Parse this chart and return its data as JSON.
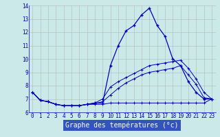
{
  "hours": [
    0,
    1,
    2,
    3,
    4,
    5,
    6,
    7,
    8,
    9,
    10,
    11,
    12,
    13,
    14,
    15,
    16,
    17,
    18,
    19,
    20,
    21,
    22,
    23
  ],
  "temp": [
    7.5,
    6.9,
    6.8,
    6.6,
    6.5,
    6.5,
    6.5,
    6.6,
    6.7,
    6.7,
    9.5,
    11.0,
    12.1,
    12.5,
    13.3,
    13.8,
    12.5,
    11.7,
    10.0,
    9.5,
    8.3,
    7.5,
    7.0,
    7.0
  ],
  "temp_min": [
    7.5,
    6.9,
    6.8,
    6.6,
    6.5,
    6.5,
    6.5,
    6.6,
    6.6,
    6.6,
    6.7,
    6.7,
    6.7,
    6.7,
    6.7,
    6.7,
    6.7,
    6.7,
    6.7,
    6.7,
    6.7,
    6.7,
    6.7,
    7.0
  ],
  "temp_max": [
    7.5,
    6.9,
    6.8,
    6.6,
    6.5,
    6.5,
    6.5,
    6.6,
    6.7,
    7.0,
    7.9,
    8.3,
    8.6,
    8.9,
    9.2,
    9.5,
    9.6,
    9.7,
    9.8,
    9.9,
    9.3,
    8.5,
    7.5,
    7.0
  ],
  "temp_avg": [
    7.5,
    6.9,
    6.8,
    6.6,
    6.5,
    6.5,
    6.5,
    6.6,
    6.65,
    6.8,
    7.3,
    7.8,
    8.2,
    8.5,
    8.8,
    9.0,
    9.1,
    9.2,
    9.3,
    9.5,
    8.8,
    8.1,
    7.1,
    7.0
  ],
  "ylim": [
    6,
    14
  ],
  "xlim_min": -0.5,
  "xlim_max": 23.5,
  "yticks": [
    6,
    7,
    8,
    9,
    10,
    11,
    12,
    13,
    14
  ],
  "xticks": [
    0,
    1,
    2,
    3,
    4,
    5,
    6,
    7,
    8,
    9,
    10,
    11,
    12,
    13,
    14,
    15,
    16,
    17,
    18,
    19,
    20,
    21,
    22,
    23
  ],
  "bg_color": "#cce9e9",
  "line_color": "#0000bb",
  "grid_color": "#b0b8b8",
  "xlabel": "Graphe des températures (°c)",
  "tick_fontsize": 5.5,
  "label_fontsize": 7.0,
  "xlabel_bg": "#3355bb"
}
